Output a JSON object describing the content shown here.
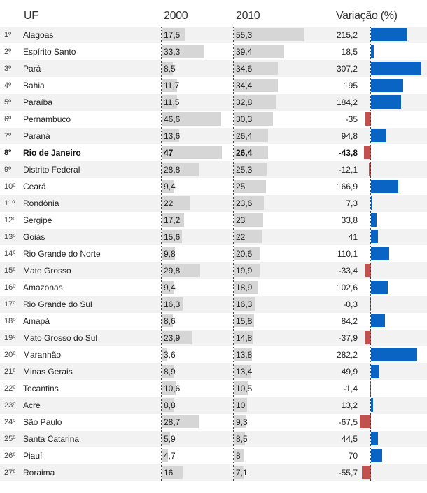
{
  "headers": {
    "uf": "UF",
    "y2000": "2000",
    "y2010": "2010",
    "variacao": "Variação (%)"
  },
  "colors": {
    "positive": "#0a64c3",
    "negative": "#c1514e",
    "bar": "#d6d6d6"
  },
  "chart_data": {
    "type": "table",
    "columns": [
      "UF",
      "2000",
      "2010",
      "Variação (%)"
    ],
    "highlight": "Rio de Janeiro",
    "rows": [
      {
        "rank": "1º",
        "uf": "Alagoas",
        "v2000": "17,5",
        "v2010": "55,3",
        "var": "215,2"
      },
      {
        "rank": "2º",
        "uf": "Espírito Santo",
        "v2000": "33,3",
        "v2010": "39,4",
        "var": "18,5"
      },
      {
        "rank": "3º",
        "uf": "Pará",
        "v2000": "8,5",
        "v2010": "34,6",
        "var": "307,2"
      },
      {
        "rank": "4º",
        "uf": "Bahia",
        "v2000": "11,7",
        "v2010": "34,4",
        "var": "195"
      },
      {
        "rank": "5º",
        "uf": "Paraíba",
        "v2000": "11,5",
        "v2010": "32,8",
        "var": "184,2"
      },
      {
        "rank": "6º",
        "uf": "Pernambuco",
        "v2000": "46,6",
        "v2010": "30,3",
        "var": "-35"
      },
      {
        "rank": "7º",
        "uf": "Paraná",
        "v2000": "13,6",
        "v2010": "26,4",
        "var": "94,8"
      },
      {
        "rank": "8º",
        "uf": "Rio de Janeiro",
        "v2000": "47",
        "v2010": "26,4",
        "var": "-43,8"
      },
      {
        "rank": "9º",
        "uf": "Distrito Federal",
        "v2000": "28,8",
        "v2010": "25,3",
        "var": "-12,1"
      },
      {
        "rank": "10º",
        "uf": "Ceará",
        "v2000": "9,4",
        "v2010": "25",
        "var": "166,9"
      },
      {
        "rank": "11º",
        "uf": "Rondônia",
        "v2000": "22",
        "v2010": "23,6",
        "var": "7,3"
      },
      {
        "rank": "12º",
        "uf": "Sergipe",
        "v2000": "17,2",
        "v2010": "23",
        "var": "33,8"
      },
      {
        "rank": "13º",
        "uf": "Goiás",
        "v2000": "15,6",
        "v2010": "22",
        "var": "41"
      },
      {
        "rank": "14º",
        "uf": "Rio Grande do Norte",
        "v2000": "9,8",
        "v2010": "20,6",
        "var": "110,1"
      },
      {
        "rank": "15º",
        "uf": "Mato Grosso",
        "v2000": "29,8",
        "v2010": "19,9",
        "var": "-33,4"
      },
      {
        "rank": "16º",
        "uf": "Amazonas",
        "v2000": "9,4",
        "v2010": "18,9",
        "var": "102,6"
      },
      {
        "rank": "17º",
        "uf": "Rio Grande do Sul",
        "v2000": "16,3",
        "v2010": "16,3",
        "var": "-0,3"
      },
      {
        "rank": "18º",
        "uf": "Amapá",
        "v2000": "8,6",
        "v2010": "15,8",
        "var": "84,2"
      },
      {
        "rank": "19º",
        "uf": "Mato Grosso do Sul",
        "v2000": "23,9",
        "v2010": "14,8",
        "var": "-37,9"
      },
      {
        "rank": "20º",
        "uf": "Maranhão",
        "v2000": "3,6",
        "v2010": "13,8",
        "var": "282,2"
      },
      {
        "rank": "21º",
        "uf": "Minas Gerais",
        "v2000": "8,9",
        "v2010": "13,4",
        "var": "49,9"
      },
      {
        "rank": "22º",
        "uf": "Tocantins",
        "v2000": "10,6",
        "v2010": "10,5",
        "var": "-1,4"
      },
      {
        "rank": "23º",
        "uf": "Acre",
        "v2000": "8,8",
        "v2010": "10",
        "var": "13,2"
      },
      {
        "rank": "24º",
        "uf": "São Paulo",
        "v2000": "28,7",
        "v2010": "9,3",
        "var": "-67,5"
      },
      {
        "rank": "25º",
        "uf": "Santa Catarina",
        "v2000": "5,9",
        "v2010": "8,5",
        "var": "44,5"
      },
      {
        "rank": "26º",
        "uf": "Piauí",
        "v2000": "4,7",
        "v2010": "8",
        "var": "70"
      },
      {
        "rank": "27º",
        "uf": "Roraima",
        "v2000": "16",
        "v2010": "7,1",
        "var": "-55,7"
      }
    ]
  }
}
